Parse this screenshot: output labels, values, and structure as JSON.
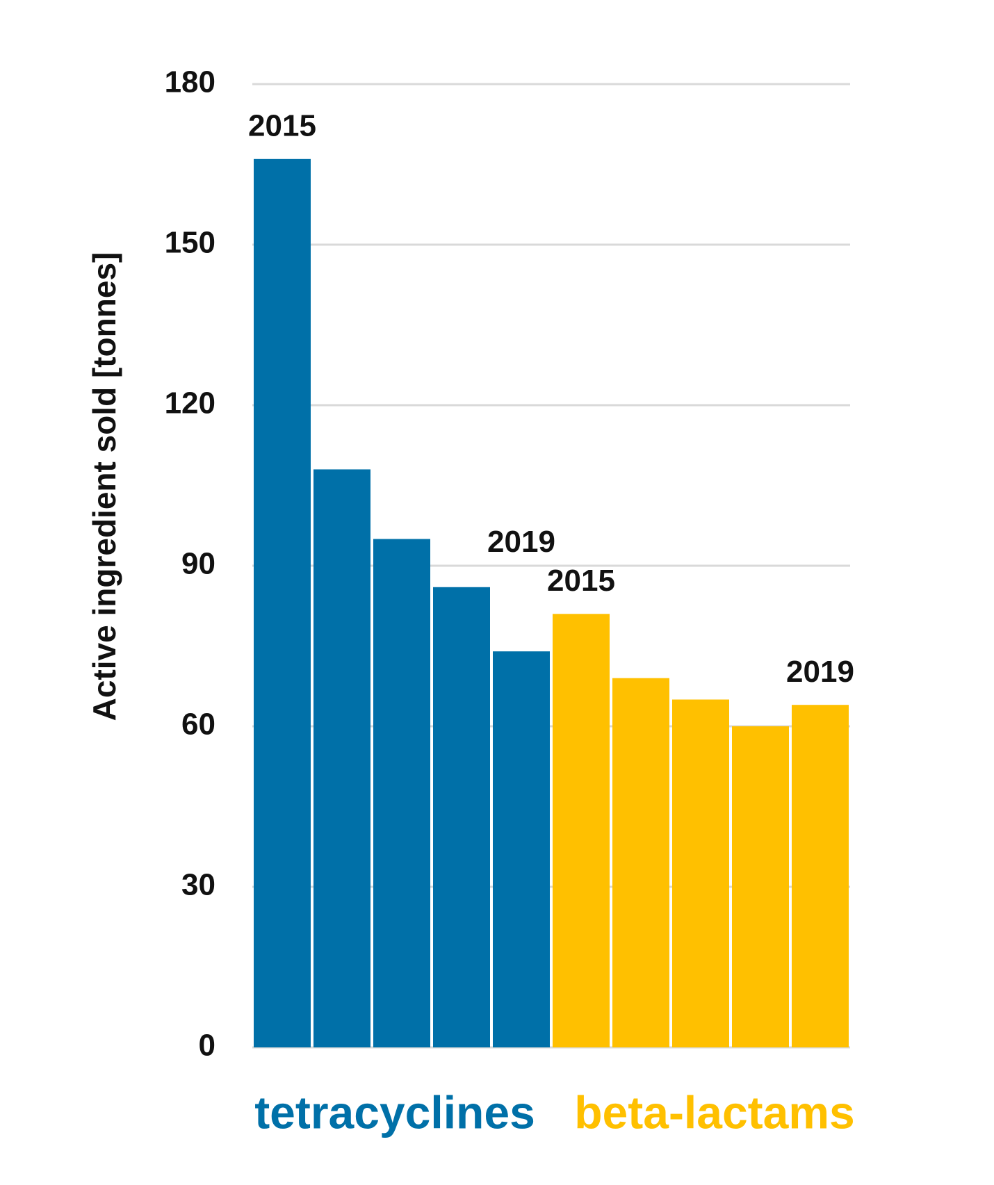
{
  "chart_data": {
    "type": "bar",
    "y_label": "Active ingredient sold [tonnes]",
    "categories": [
      "2015",
      null,
      null,
      null,
      "2019"
    ],
    "series": [
      {
        "name": "tetracyclines",
        "color": "#0070a8",
        "values": [
          166,
          108,
          95,
          86,
          74
        ]
      },
      {
        "name": "beta-lactams",
        "color": "#ffc000",
        "values": [
          81,
          69,
          65,
          60,
          64
        ]
      }
    ],
    "ylim": [
      0,
      180
    ],
    "yticks": [
      0,
      30,
      60,
      90,
      120,
      150,
      180
    ],
    "grid": true
  }
}
